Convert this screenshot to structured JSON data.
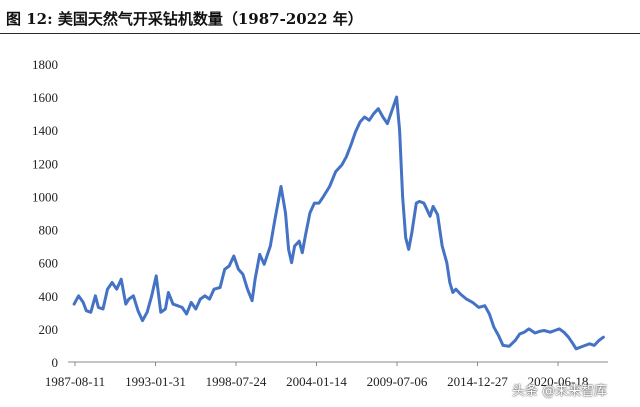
{
  "figure": {
    "title": "图  12:  美国天然气开采钻机数量（1987-2022 年）"
  },
  "watermark": {
    "text": "头条 @未来智库"
  },
  "chart_data": {
    "type": "line",
    "title": "",
    "xlabel": "",
    "ylabel": "",
    "ylim": [
      0,
      1800
    ],
    "y_ticks": [
      0,
      200,
      400,
      600,
      800,
      1000,
      1200,
      1400,
      1600,
      1800
    ],
    "x_tick_labels": [
      "1987-08-11",
      "1993-01-31",
      "1998-07-24",
      "2004-01-14",
      "2009-07-06",
      "2014-12-27",
      "2020-06-18"
    ],
    "x_range": [
      1987.0,
      2022.5
    ],
    "grid": false,
    "legend": "none",
    "color": "#4472c4",
    "series": [
      {
        "x": [
          1987.4,
          1987.7,
          1988.0,
          1988.2,
          1988.5,
          1988.8,
          1989.0,
          1989.3,
          1989.6,
          1989.9,
          1990.2,
          1990.5,
          1990.8,
          1991.0,
          1991.3,
          1991.6,
          1991.9,
          1992.2,
          1992.5,
          1992.8,
          1993.1,
          1993.4,
          1993.6,
          1993.9,
          1994.2,
          1994.5,
          1994.8,
          1995.1,
          1995.4,
          1995.7,
          1996.0,
          1996.3,
          1996.6,
          1997.0,
          1997.3,
          1997.6,
          1997.9,
          1998.2,
          1998.5,
          1998.8,
          1999.1,
          1999.3,
          1999.6,
          1999.9,
          2000.3,
          2000.6,
          2001.0,
          2001.3,
          2001.5,
          2001.7,
          2001.9,
          2002.2,
          2002.4,
          2002.6,
          2002.9,
          2003.2,
          2003.5,
          2003.8,
          2004.2,
          2004.6,
          2005.0,
          2005.3,
          2005.6,
          2005.9,
          2006.2,
          2006.5,
          2006.8,
          2007.1,
          2007.4,
          2007.7,
          2008.0,
          2008.3,
          2008.6,
          2008.8,
          2009.0,
          2009.2,
          2009.4,
          2009.6,
          2009.9,
          2010.1,
          2010.4,
          2010.6,
          2010.8,
          2011.0,
          2011.3,
          2011.6,
          2011.9,
          2012.1,
          2012.3,
          2012.5,
          2012.8,
          2013.2,
          2013.6,
          2014.0,
          2014.4,
          2014.7,
          2015.0,
          2015.3,
          2015.6,
          2016.0,
          2016.4,
          2016.7,
          2017.0,
          2017.3,
          2017.7,
          2018.0,
          2018.3,
          2018.7,
          2019.0,
          2019.3,
          2019.6,
          2019.9,
          2020.2,
          2020.4,
          2020.7,
          2021.0,
          2021.3,
          2021.6,
          2021.9,
          2022.2
        ],
        "values": [
          350,
          400,
          360,
          310,
          300,
          400,
          330,
          320,
          440,
          480,
          440,
          500,
          350,
          380,
          400,
          310,
          250,
          300,
          400,
          520,
          300,
          320,
          420,
          350,
          340,
          330,
          290,
          360,
          320,
          380,
          400,
          380,
          440,
          450,
          560,
          580,
          640,
          560,
          530,
          440,
          370,
          500,
          650,
          590,
          700,
          860,
          1060,
          900,
          680,
          600,
          700,
          730,
          660,
          760,
          900,
          960,
          960,
          1000,
          1060,
          1150,
          1190,
          1240,
          1310,
          1390,
          1450,
          1480,
          1460,
          1500,
          1530,
          1480,
          1440,
          1520,
          1600,
          1400,
          1000,
          750,
          680,
          780,
          960,
          970,
          960,
          920,
          880,
          940,
          890,
          700,
          600,
          480,
          420,
          440,
          410,
          380,
          360,
          330,
          340,
          290,
          210,
          160,
          100,
          95,
          130,
          170,
          180,
          200,
          175,
          185,
          190,
          180,
          190,
          200,
          180,
          150,
          110,
          80,
          90,
          100,
          110,
          100,
          130,
          150
        ]
      }
    ]
  }
}
